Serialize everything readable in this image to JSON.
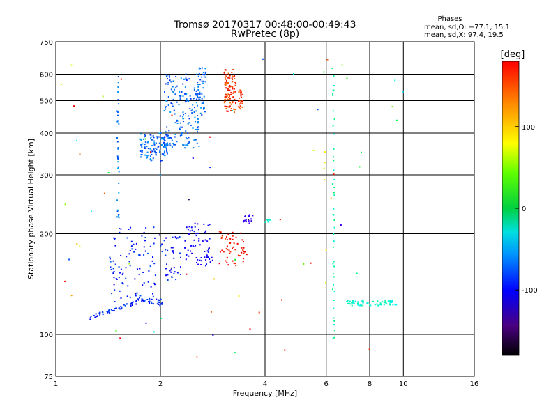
{
  "chart_data": {
    "type": "scatter",
    "title": "Tromsø 20170317 00:48:00-00:49:43",
    "subtitle": "RwPretec (8p)",
    "xlabel": "Frequency [MHz]",
    "ylabel": "Stationary phase Virtual Height [km]",
    "x_scale": "log",
    "y_scale": "log",
    "xlim": [
      1,
      16
    ],
    "ylim": [
      75,
      750
    ],
    "x_ticks": [
      1,
      2,
      4,
      6,
      8,
      10,
      16
    ],
    "y_ticks": [
      75,
      100,
      200,
      300,
      400,
      500,
      600,
      750
    ],
    "grid": true,
    "phases_box": {
      "title": "Phases",
      "line1": "mean, sd,O: −77.1, 15.1",
      "line2": "mean, sd,X:  97.4, 19.5"
    },
    "colorbar": {
      "label": "[deg]",
      "range": [
        -180,
        180
      ],
      "ticks": [
        100,
        0,
        -100
      ]
    },
    "clusters": [
      {
        "fmin": 1.25,
        "fmax": 1.85,
        "hmin": 112,
        "hmax": 116,
        "phase": -112,
        "n": 60,
        "shape": "line",
        "h2": 128
      },
      {
        "fmin": 1.85,
        "fmax": 2.05,
        "hmin": 122,
        "hmax": 128,
        "phase": -112,
        "n": 20,
        "shape": "band"
      },
      {
        "fmin": 1.45,
        "fmax": 1.95,
        "hmin": 125,
        "hmax": 210,
        "phase": -112,
        "n": 90,
        "shape": "band"
      },
      {
        "fmin": 2.0,
        "fmax": 2.3,
        "hmin": 140,
        "hmax": 200,
        "phase": -118,
        "n": 40,
        "shape": "band"
      },
      {
        "fmin": 2.35,
        "fmax": 2.85,
        "hmin": 160,
        "hmax": 215,
        "phase": -125,
        "n": 70,
        "shape": "band"
      },
      {
        "fmin": 1.75,
        "fmax": 2.1,
        "hmin": 330,
        "hmax": 400,
        "phase": -95,
        "n": 120,
        "shape": "band"
      },
      {
        "fmin": 2.05,
        "fmax": 2.6,
        "hmin": 360,
        "hmax": 600,
        "phase": -95,
        "n": 170,
        "shape": "band"
      },
      {
        "fmin": 2.5,
        "fmax": 2.7,
        "hmin": 450,
        "hmax": 630,
        "phase": -92,
        "n": 50,
        "shape": "band"
      },
      {
        "fmin": 3.05,
        "fmax": 3.3,
        "hmin": 460,
        "hmax": 620,
        "phase": 105,
        "n": 100,
        "shape": "band"
      },
      {
        "fmin": 3.35,
        "fmax": 3.45,
        "hmin": 470,
        "hmax": 540,
        "phase": 105,
        "n": 25,
        "shape": "band"
      },
      {
        "fmin": 2.95,
        "fmax": 3.55,
        "hmin": 160,
        "hmax": 205,
        "phase": 118,
        "n": 55,
        "shape": "band"
      },
      {
        "fmin": 3.45,
        "fmax": 3.7,
        "hmin": 215,
        "hmax": 228,
        "phase": -150,
        "n": 15,
        "shape": "band"
      },
      {
        "fmin": 4.0,
        "fmax": 4.15,
        "hmin": 215,
        "hmax": 222,
        "phase": -55,
        "n": 8,
        "shape": "band"
      },
      {
        "fmin": 1.5,
        "fmax": 1.52,
        "hmin": 210,
        "hmax": 630,
        "phase": -90,
        "n": 35,
        "shape": "band"
      },
      {
        "fmin": 1.42,
        "fmax": 1.5,
        "hmin": 115,
        "hmax": 170,
        "phase": -110,
        "n": 12,
        "shape": "band"
      },
      {
        "fmin": 6.25,
        "fmax": 6.35,
        "hmin": 95,
        "hmax": 630,
        "phase": -40,
        "n": 45,
        "shape": "band"
      },
      {
        "fmin": 6.8,
        "fmax": 9.6,
        "hmin": 122,
        "hmax": 126,
        "phase": -50,
        "n": 60,
        "shape": "band"
      },
      {
        "fmin": 5.9,
        "fmax": 6.0,
        "hmin": 120,
        "hmax": 380,
        "phase": 60,
        "n": 6,
        "shape": "band"
      },
      {
        "fmin": 1.0,
        "fmax": 10.0,
        "hmin": 80,
        "hmax": 700,
        "phase": 0,
        "n": 70,
        "shape": "scatter"
      }
    ]
  }
}
